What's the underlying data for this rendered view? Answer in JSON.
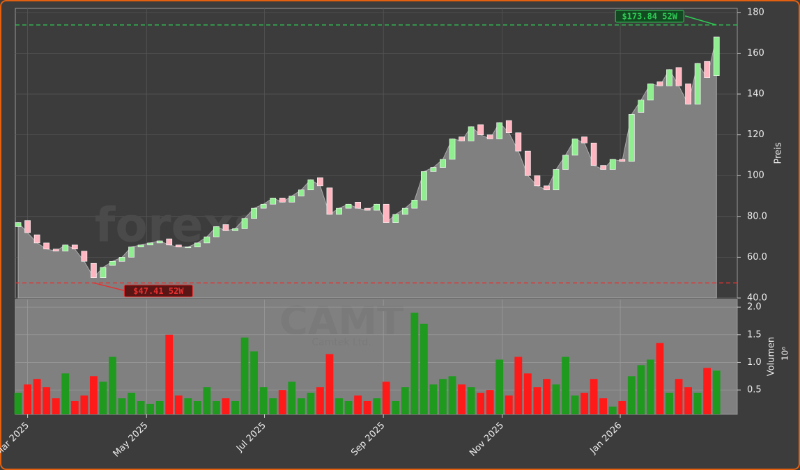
{
  "chart_data": [
    {
      "type": "candlestick",
      "y_label": "Preis",
      "open": [
        75,
        78,
        71,
        67,
        64,
        63,
        66,
        63,
        57,
        50,
        56,
        58,
        60,
        65,
        66,
        67,
        69,
        66,
        65,
        65,
        67,
        70,
        76,
        73,
        74,
        79,
        84,
        86,
        89,
        87,
        90,
        93,
        99,
        94,
        81,
        84,
        87,
        84,
        83,
        86,
        77,
        81,
        84,
        88,
        102,
        104,
        108,
        119,
        117,
        125,
        120,
        118,
        127,
        121,
        112,
        100,
        95,
        93,
        103,
        110,
        119,
        116,
        105,
        103,
        108,
        107,
        131,
        137,
        146,
        144,
        153,
        145,
        135,
        156,
        149
      ],
      "close": [
        77,
        72,
        67,
        64,
        63,
        66,
        64,
        58,
        50,
        55,
        58,
        60,
        65,
        66,
        67,
        68,
        66,
        65,
        65,
        67,
        70,
        75,
        73,
        74,
        79,
        84,
        86,
        89,
        87,
        90,
        93,
        98,
        95,
        81,
        84,
        86,
        84,
        83,
        86,
        77,
        81,
        84,
        88,
        102,
        104,
        108,
        118,
        117,
        124,
        120,
        118,
        126,
        121,
        112,
        100,
        95,
        93,
        103,
        110,
        118,
        116,
        105,
        103,
        108,
        107,
        130,
        137,
        145,
        144,
        152,
        144,
        135,
        155,
        148,
        168
      ],
      "up_color": "#90ee90",
      "down_color": "#ffb6c1",
      "area_color": "#808080",
      "xlim": [
        -0.3,
        76.2
      ],
      "xticks": [
        {
          "value": 1,
          "label": "Mar 2025"
        },
        {
          "value": 13.6,
          "label": "May 2025"
        },
        {
          "value": 26.1,
          "label": "Jul 2025"
        },
        {
          "value": 38.7,
          "label": "Sep 2025"
        },
        {
          "value": 51.3,
          "label": "Nov 2025"
        },
        {
          "value": 63.8,
          "label": "Jan 2026"
        }
      ],
      "ylim": [
        40,
        182
      ],
      "yticks": [
        {
          "value": 40,
          "label": "40.0"
        },
        {
          "value": 60,
          "label": "60.0"
        },
        {
          "value": 80,
          "label": "80.0"
        },
        100,
        120,
        140,
        160,
        180
      ],
      "grid": true,
      "annotations": [
        {
          "label": "$173.84 52W",
          "value": 173.84,
          "color": "#2ecc55",
          "extreme": "max"
        },
        {
          "label": "$47.41 52W",
          "value": 47.41,
          "color": "#e83030",
          "extreme": "min"
        }
      ],
      "watermark": "forexsignale.trade"
    },
    {
      "type": "bar",
      "y_label": "Volumen",
      "offset_label": "10⁶",
      "values": [
        0.45,
        0.6,
        0.7,
        0.55,
        0.35,
        0.8,
        0.3,
        0.4,
        0.75,
        0.65,
        1.1,
        0.35,
        0.45,
        0.3,
        0.25,
        0.3,
        1.5,
        0.4,
        0.35,
        0.3,
        0.55,
        0.3,
        0.35,
        0.3,
        1.45,
        1.2,
        0.55,
        0.35,
        0.5,
        0.65,
        0.35,
        0.45,
        0.55,
        1.15,
        0.35,
        0.3,
        0.4,
        0.3,
        0.35,
        0.65,
        0.3,
        0.55,
        1.9,
        1.7,
        0.6,
        0.7,
        0.75,
        0.6,
        0.55,
        0.45,
        0.5,
        1.05,
        0.4,
        1.1,
        0.8,
        0.55,
        0.7,
        0.6,
        1.1,
        0.4,
        0.45,
        0.7,
        0.35,
        0.2,
        0.3,
        0.75,
        0.95,
        1.05,
        1.35,
        0.45,
        0.7,
        0.55,
        0.45,
        0.9,
        0.85
      ],
      "up_color": "#1f9a1f",
      "down_color": "#ff1a1a",
      "ylim": [
        0.06,
        2.14
      ],
      "yticks": [
        0.5,
        {
          "value": 1,
          "label": "1.0"
        },
        1.5,
        {
          "value": 2,
          "label": "2.0"
        }
      ],
      "watermark": "CAMT",
      "watermark_sub": "Camtek Ltd."
    }
  ]
}
